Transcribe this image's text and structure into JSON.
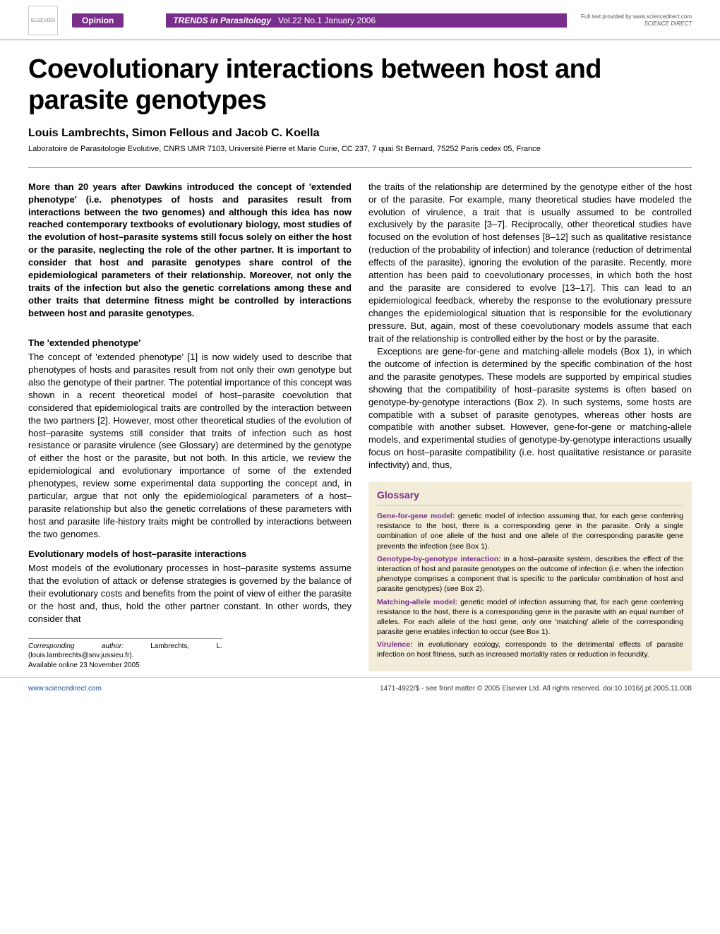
{
  "colors": {
    "brand": "#7a2e8c",
    "link": "#1a4fa0",
    "glossary_bg": "#f2ecd9",
    "text": "#000000",
    "rule": "#999999"
  },
  "typography": {
    "title_fontsize": 38,
    "authors_fontsize": 16,
    "body_fontsize": 13,
    "glossary_fontsize": 10.5,
    "footer_fontsize": 10
  },
  "header": {
    "publisher_logo_alt": "ELSEVIER",
    "section_label": "Opinion",
    "journal_name": "TRENDS in Parasitology",
    "issue": "Vol.22 No.1 January 2006",
    "provider_line1": "Full text provided by www.sciencedirect.com",
    "provider_line2": "SCIENCE DIRECT"
  },
  "article": {
    "title": "Coevolutionary interactions between host and parasite genotypes",
    "authors": "Louis Lambrechts, Simon Fellous and Jacob C. Koella",
    "affiliation": "Laboratoire de Parasitologie Evolutive, CNRS UMR 7103, Université Pierre et Marie Curie, CC 237, 7 quai St Bernard, 75252 Paris cedex 05, France"
  },
  "abstract": "More than 20 years after Dawkins introduced the concept of 'extended phenotype' (i.e. phenotypes of hosts and parasites result from interactions between the two genomes) and although this idea has now reached contemporary textbooks of evolutionary biology, most studies of the evolution of host–parasite systems still focus solely on either the host or the parasite, neglecting the role of the other partner. It is important to consider that host and parasite genotypes share control of the epidemiological parameters of their relationship. Moreover, not only the traits of the infection but also the genetic correlations among these and other traits that determine fitness might be controlled by interactions between host and parasite genotypes.",
  "left_sections": [
    {
      "heading": "The 'extended phenotype'",
      "paragraphs": [
        "The concept of 'extended phenotype' [1] is now widely used to describe that phenotypes of hosts and parasites result from not only their own genotype but also the genotype of their partner. The potential importance of this concept was shown in a recent theoretical model of host–parasite coevolution that considered that epidemiological traits are controlled by the interaction between the two partners [2]. However, most other theoretical studies of the evolution of host–parasite systems still consider that traits of infection such as host resistance or parasite virulence (see Glossary) are determined by the genotype of either the host or the parasite, but not both. In this article, we review the epidemiological and evolutionary importance of some of the extended phenotypes, review some experimental data supporting the concept and, in particular, argue that not only the epidemiological parameters of a host–parasite relationship but also the genetic correlations of these parameters with host and parasite life-history traits might be controlled by interactions between the two genomes."
      ]
    },
    {
      "heading": "Evolutionary models of host–parasite interactions",
      "paragraphs": [
        "Most models of the evolutionary processes in host–parasite systems assume that the evolution of attack or defense strategies is governed by the balance of their evolutionary costs and benefits from the point of view of either the parasite or the host and, thus, hold the other partner constant. In other words, they consider that"
      ]
    }
  ],
  "right_paragraphs": [
    "the traits of the relationship are determined by the genotype either of the host or of the parasite. For example, many theoretical studies have modeled the evolution of virulence, a trait that is usually assumed to be controlled exclusively by the parasite [3–7]. Reciprocally, other theoretical studies have focused on the evolution of host defenses [8–12] such as qualitative resistance (reduction of the probability of infection) and tolerance (reduction of detrimental effects of the parasite), ignoring the evolution of the parasite. Recently, more attention has been paid to coevolutionary processes, in which both the host and the parasite are considered to evolve [13–17]. This can lead to an epidemiological feedback, whereby the response to the evolutionary pressure changes the epidemiological situation that is responsible for the evolutionary pressure. But, again, most of these coevolutionary models assume that each trait of the relationship is controlled either by the host or by the parasite.",
    "Exceptions are gene-for-gene and matching-allele models (Box 1), in which the outcome of infection is determined by the specific combination of the host and the parasite genotypes. These models are supported by empirical studies showing that the compatibility of host–parasite systems is often based on genotype-by-genotype interactions (Box 2). In such systems, some hosts are compatible with a subset of parasite genotypes, whereas other hosts are compatible with another subset. However, gene-for-gene or matching-allele models, and experimental studies of genotype-by-genotype interactions usually focus on host–parasite compatibility (i.e. host qualitative resistance or parasite infectivity) and, thus,"
  ],
  "glossary": {
    "title": "Glossary",
    "entries": [
      {
        "term": "Gene-for-gene model:",
        "def": "genetic model of infection assuming that, for each gene conferring resistance to the host, there is a corresponding gene in the parasite. Only a single combination of one allele of the host and one allele of the corresponding parasite gene prevents the infection (see Box 1)."
      },
      {
        "term": "Genotype-by-genotype interaction:",
        "def": "in a host–parasite system, describes the effect of the interaction of host and parasite genotypes on the outcome of infection (i.e. when the infection phenotype comprises a component that is specific to the particular combination of host and parasite genotypes) (see Box 2)."
      },
      {
        "term": "Matching-allele model:",
        "def": "genetic model of infection assuming that, for each gene conferring resistance to the host, there is a corresponding gene in the parasite with an equal number of alleles. For each allele of the host gene, only one 'matching' allele of the corresponding parasite gene enables infection to occur (see Box 1)."
      },
      {
        "term": "Virulence:",
        "def": "in evolutionary ecology, corresponds to the detrimental effects of parasite infection on host fitness, such as increased mortality rates or reduction in fecundity."
      }
    ]
  },
  "corresponding": {
    "label": "Corresponding author:",
    "text": "Lambrechts, L. (louis.lambrechts@snv.jussieu.fr).",
    "online": "Available online 23 November 2005"
  },
  "footer": {
    "url": "www.sciencedirect.com",
    "copyright": "1471-4922/$ - see front matter © 2005 Elsevier Ltd. All rights reserved. doi:10.1016/j.pt.2005.11.008"
  }
}
